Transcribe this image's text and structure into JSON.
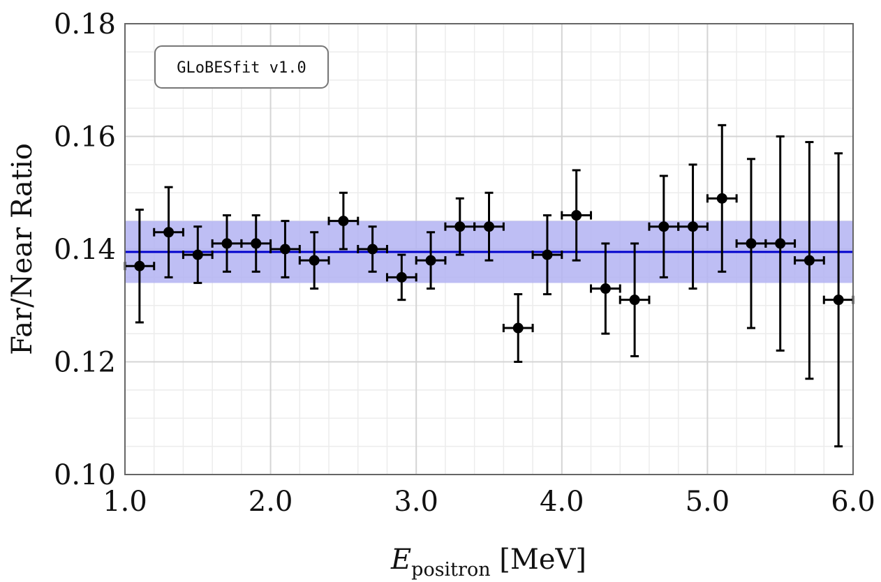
{
  "chart_data": {
    "type": "scatter",
    "xlabel": {
      "main": "E",
      "sub": "positron",
      "unit": " [MeV]"
    },
    "ylabel": "Far/Near Ratio",
    "xlim": [
      1.0,
      6.0
    ],
    "ylim": [
      0.1,
      0.18
    ],
    "x_ticks": [
      1.0,
      2.0,
      3.0,
      4.0,
      5.0,
      6.0
    ],
    "x_tick_labels": [
      "1.0",
      "2.0",
      "3.0",
      "4.0",
      "5.0",
      "6.0"
    ],
    "y_ticks": [
      0.1,
      0.12,
      0.14,
      0.16,
      0.18
    ],
    "y_tick_labels": [
      "0.10",
      "0.12",
      "0.14",
      "0.16",
      "0.18"
    ],
    "grid": true,
    "annotation": "GLoBESfit v1.0",
    "fit": {
      "value": 0.1395,
      "band": [
        0.134,
        0.145
      ],
      "color": "#0000cc",
      "band_color": "#b3b3f2"
    },
    "marker_color": "#000000",
    "x_halfwidth": 0.1,
    "points": [
      {
        "x": 1.1,
        "y": 0.137,
        "ylow": 0.127,
        "yhigh": 0.147
      },
      {
        "x": 1.3,
        "y": 0.143,
        "ylow": 0.135,
        "yhigh": 0.151
      },
      {
        "x": 1.5,
        "y": 0.139,
        "ylow": 0.134,
        "yhigh": 0.144
      },
      {
        "x": 1.7,
        "y": 0.141,
        "ylow": 0.136,
        "yhigh": 0.146
      },
      {
        "x": 1.9,
        "y": 0.141,
        "ylow": 0.136,
        "yhigh": 0.146
      },
      {
        "x": 2.1,
        "y": 0.14,
        "ylow": 0.135,
        "yhigh": 0.145
      },
      {
        "x": 2.3,
        "y": 0.138,
        "ylow": 0.133,
        "yhigh": 0.143
      },
      {
        "x": 2.5,
        "y": 0.145,
        "ylow": 0.14,
        "yhigh": 0.15
      },
      {
        "x": 2.7,
        "y": 0.14,
        "ylow": 0.136,
        "yhigh": 0.144
      },
      {
        "x": 2.9,
        "y": 0.135,
        "ylow": 0.131,
        "yhigh": 0.139
      },
      {
        "x": 3.1,
        "y": 0.138,
        "ylow": 0.133,
        "yhigh": 0.143
      },
      {
        "x": 3.3,
        "y": 0.144,
        "ylow": 0.139,
        "yhigh": 0.149
      },
      {
        "x": 3.5,
        "y": 0.144,
        "ylow": 0.138,
        "yhigh": 0.15
      },
      {
        "x": 3.7,
        "y": 0.126,
        "ylow": 0.12,
        "yhigh": 0.132
      },
      {
        "x": 3.9,
        "y": 0.139,
        "ylow": 0.132,
        "yhigh": 0.146
      },
      {
        "x": 4.1,
        "y": 0.146,
        "ylow": 0.138,
        "yhigh": 0.154
      },
      {
        "x": 4.3,
        "y": 0.133,
        "ylow": 0.125,
        "yhigh": 0.141
      },
      {
        "x": 4.5,
        "y": 0.131,
        "ylow": 0.121,
        "yhigh": 0.141
      },
      {
        "x": 4.7,
        "y": 0.144,
        "ylow": 0.135,
        "yhigh": 0.153
      },
      {
        "x": 4.9,
        "y": 0.144,
        "ylow": 0.133,
        "yhigh": 0.155
      },
      {
        "x": 5.1,
        "y": 0.149,
        "ylow": 0.136,
        "yhigh": 0.162
      },
      {
        "x": 5.3,
        "y": 0.141,
        "ylow": 0.126,
        "yhigh": 0.156
      },
      {
        "x": 5.5,
        "y": 0.141,
        "ylow": 0.122,
        "yhigh": 0.16
      },
      {
        "x": 5.7,
        "y": 0.138,
        "ylow": 0.117,
        "yhigh": 0.159
      },
      {
        "x": 5.9,
        "y": 0.131,
        "ylow": 0.105,
        "yhigh": 0.157
      }
    ]
  }
}
